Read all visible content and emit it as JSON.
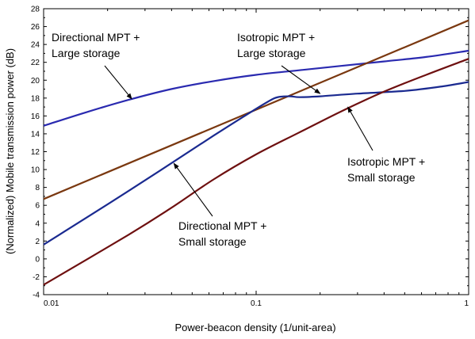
{
  "chart_data": {
    "type": "line",
    "xscale": "log",
    "xlim": [
      0.01,
      1
    ],
    "ylim": [
      -4,
      28
    ],
    "xticks": [
      0.01,
      0.1,
      1
    ],
    "xtick_labels": [
      "0.01",
      "0.1",
      "1"
    ],
    "yticks": [
      -4,
      -2,
      0,
      2,
      4,
      6,
      8,
      10,
      12,
      14,
      16,
      18,
      20,
      22,
      24,
      26,
      28
    ],
    "ytick_labels": [
      "-4",
      "-2",
      "0",
      "2",
      "4",
      "6",
      "8",
      "10",
      "12",
      "14",
      "16",
      "18",
      "20",
      "22",
      "24",
      "26",
      "28"
    ],
    "xlabel": "Power-beacon density (1/unit-area)",
    "ylabel": "(Normalized) Mobile transmission power (dB)",
    "grid": false,
    "series": [
      {
        "id": "dir-large",
        "color": "#2a2ab0",
        "x": [
          0.01,
          0.0158,
          0.0251,
          0.0398,
          0.0631,
          0.1,
          0.158,
          0.251,
          0.398,
          0.631,
          1
        ],
        "y": [
          14.9,
          16.4,
          17.8,
          19.0,
          19.9,
          20.6,
          21.1,
          21.6,
          22.1,
          22.6,
          23.3
        ]
      },
      {
        "id": "iso-large",
        "color": "#7a3810",
        "x": [
          0.01,
          1
        ],
        "y": [
          6.7,
          26.7
        ]
      },
      {
        "id": "dir-small",
        "color": "#1a2a90",
        "x": [
          0.01,
          0.0251,
          0.0631,
          0.1,
          0.12,
          0.13,
          0.145,
          0.16,
          0.2,
          0.3,
          0.5,
          0.75,
          1
        ],
        "y": [
          1.6,
          7.6,
          13.8,
          16.8,
          17.9,
          18.15,
          18.2,
          18.1,
          18.2,
          18.5,
          18.8,
          19.3,
          19.8
        ]
      },
      {
        "id": "iso-small",
        "color": "#6e1010",
        "x": [
          0.01,
          0.0251,
          0.0398,
          0.0631,
          0.1,
          0.158,
          0.251,
          0.398,
          0.631,
          1
        ],
        "y": [
          -2.9,
          2.7,
          5.7,
          8.9,
          11.7,
          14.1,
          16.5,
          18.7,
          20.6,
          22.4
        ]
      }
    ],
    "annotations": [
      {
        "lines": [
          "Directional MPT +",
          "Large storage"
        ],
        "target": [
          0.026,
          17.9
        ]
      },
      {
        "lines": [
          "Isotropic MPT +",
          "Large storage"
        ],
        "target": [
          0.2,
          18.5
        ]
      },
      {
        "lines": [
          "Isotropic MPT +",
          "Small storage"
        ],
        "target": [
          0.27,
          17.0
        ]
      },
      {
        "lines": [
          "Directional MPT +",
          "Small storage"
        ],
        "target": [
          0.041,
          10.7
        ]
      }
    ]
  }
}
